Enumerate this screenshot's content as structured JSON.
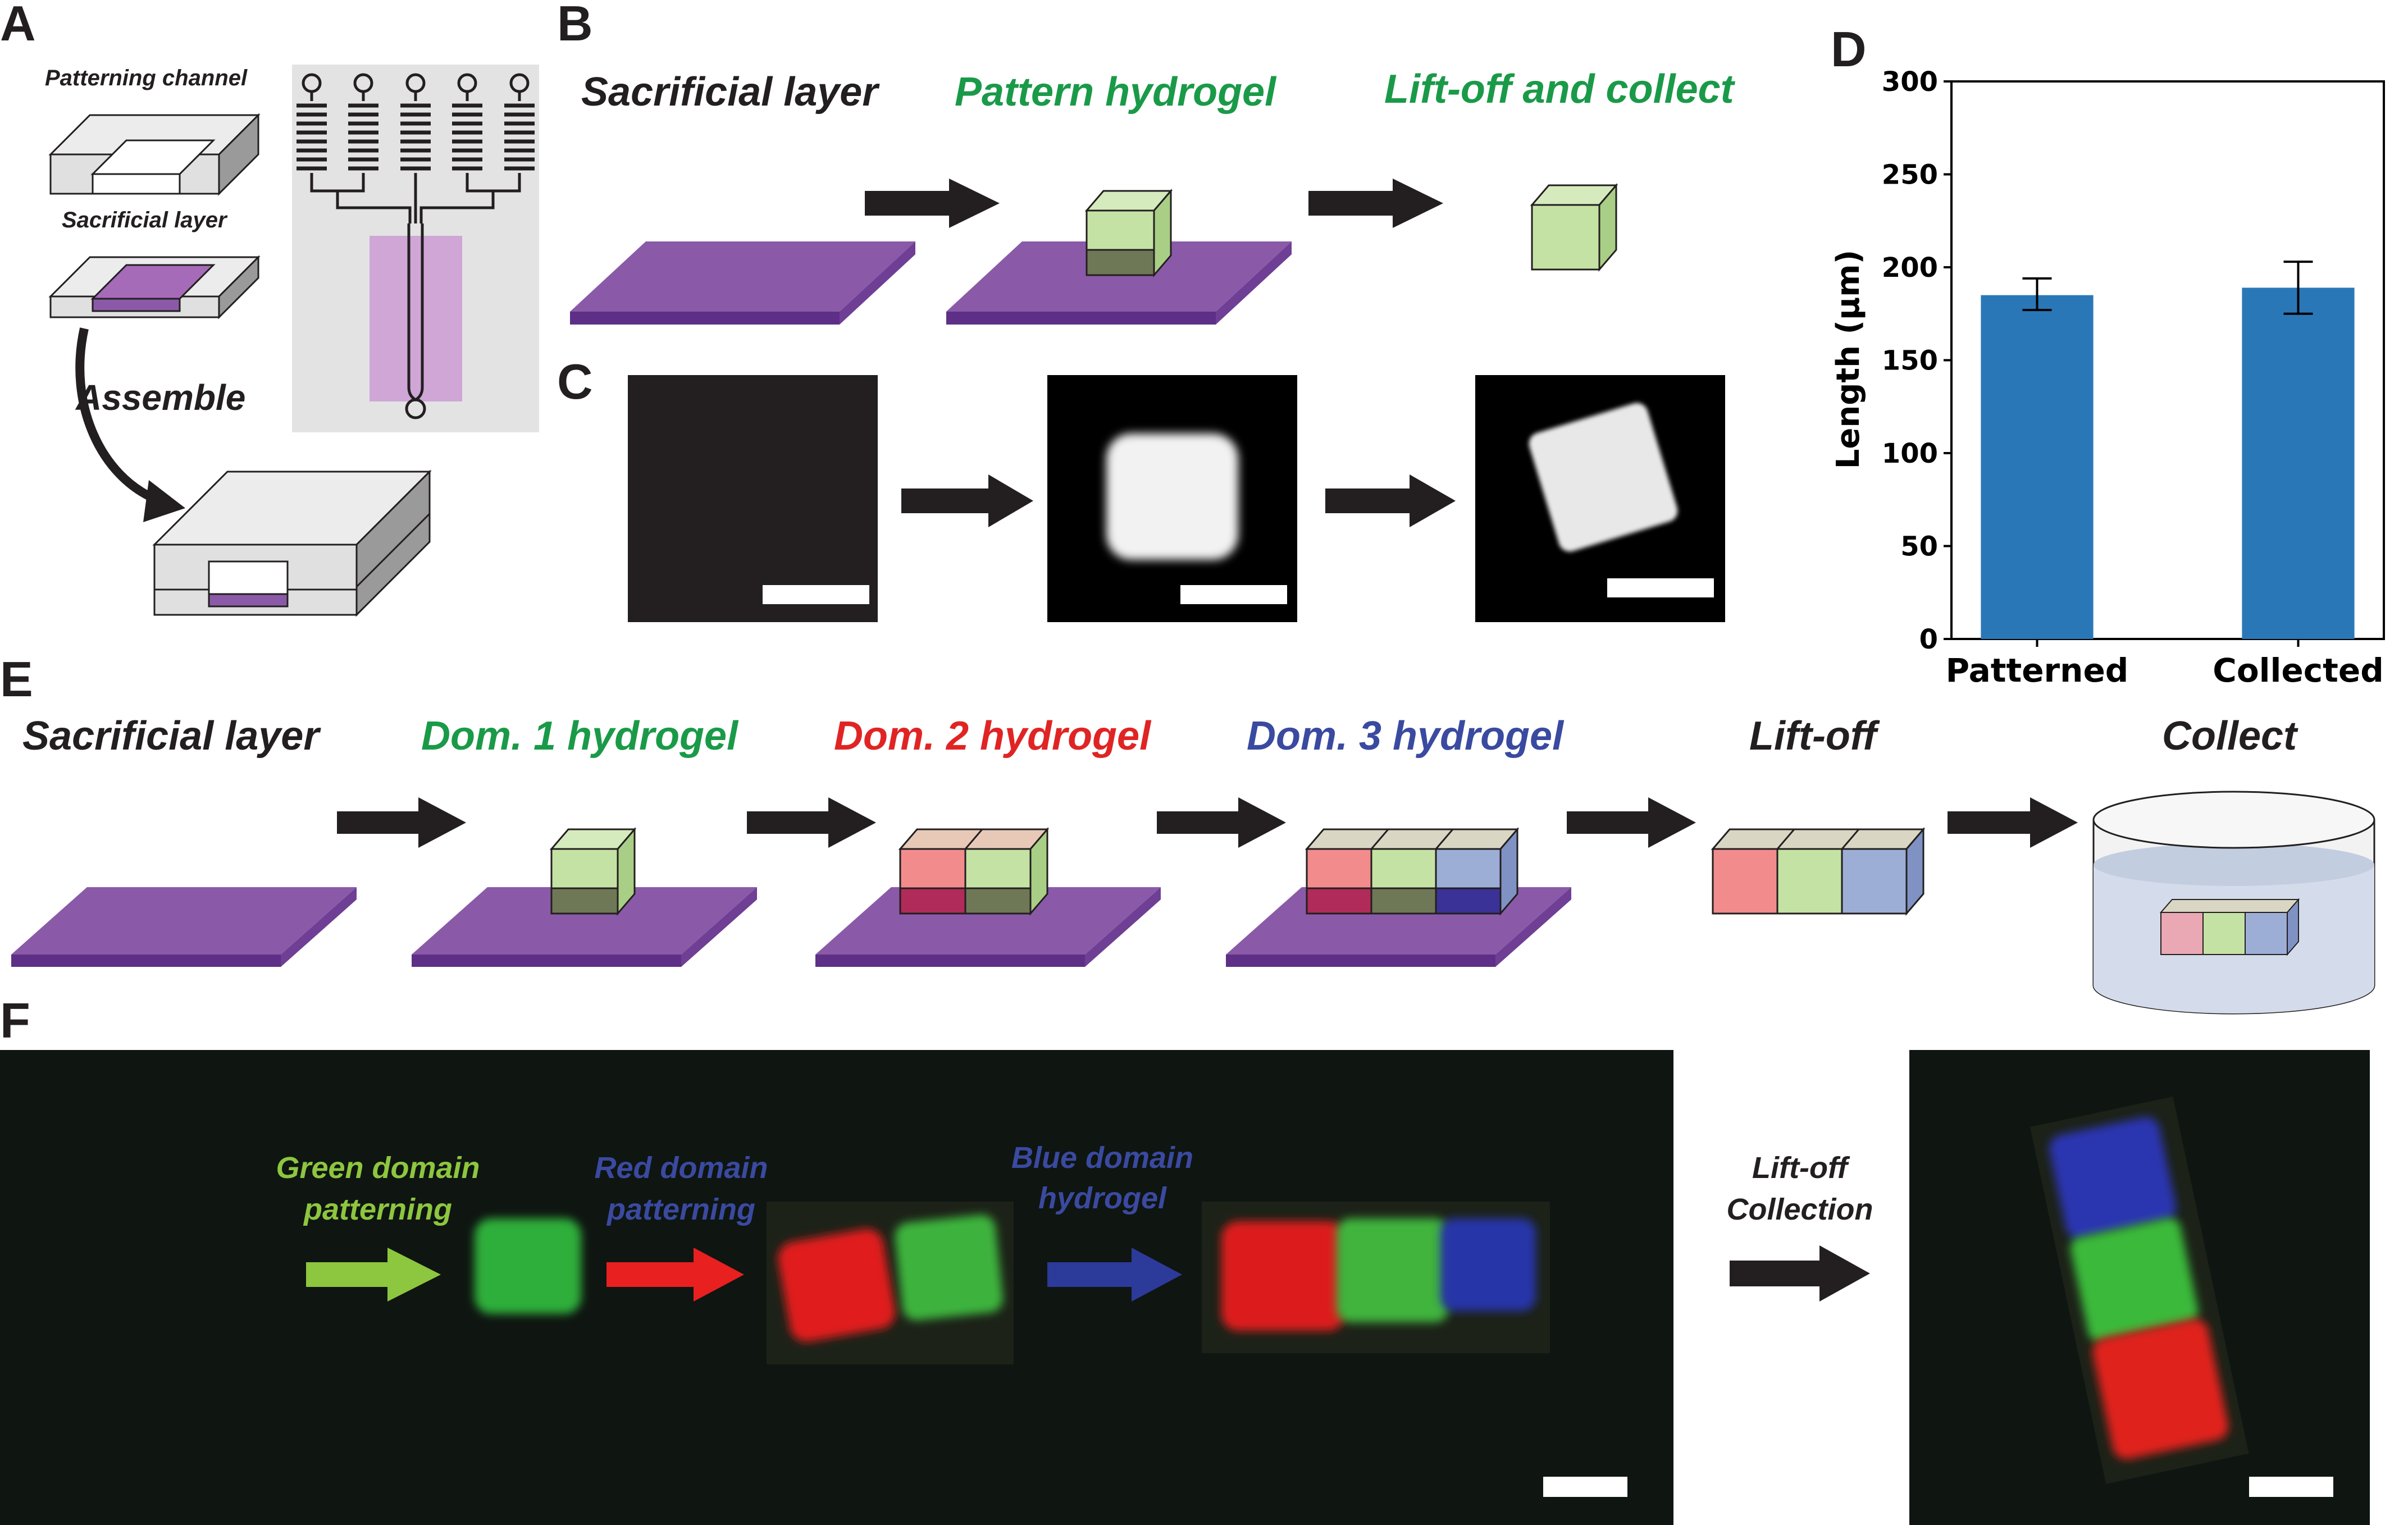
{
  "panels": {
    "A": "A",
    "B": "B",
    "C": "C",
    "D": "D",
    "E": "E",
    "F": "F"
  },
  "panel_a": {
    "patterning_channel": "Patterning channel",
    "sacrificial_layer": "Sacrificial layer",
    "assemble": "Assemble"
  },
  "panel_b": {
    "steps": [
      "Sacrificial layer",
      "Pattern hydrogel",
      "Lift-off and collect"
    ]
  },
  "panel_e": {
    "steps": [
      "Sacrificial layer",
      "Dom. 1 hydrogel",
      "Dom. 2 hydrogel",
      "Dom. 3 hydrogel",
      "Lift-off",
      "Collect"
    ]
  },
  "panel_f": {
    "labels": {
      "green_line1": "Green domain",
      "green_line2": "patterning",
      "red_line1": "Red domain",
      "red_line2": "patterning",
      "blue_line1": "Blue domain",
      "blue_line2": "hydrogel",
      "liftoff_line1": "Lift-off",
      "liftoff_line2": "Collection"
    }
  },
  "colors": {
    "purple": "#8a5aa8",
    "hydrogel_green": "#c5e2a5",
    "hydrogel_red": "#f28c8c",
    "hydrogel_blue": "#9daed6",
    "text_green": "#1a9a48",
    "text_red": "#e02424",
    "text_blue": "#3a4aa0",
    "bar": "#2a77b8"
  },
  "chart_data": {
    "type": "bar",
    "categories": [
      "Patterned",
      "Collected"
    ],
    "values": [
      185,
      189
    ],
    "errors": [
      [
        177,
        194
      ],
      [
        175,
        203
      ]
    ],
    "ylabel": "Length (μm)",
    "ylim": [
      0,
      300
    ],
    "yticks": [
      0,
      50,
      100,
      150,
      200,
      250,
      300
    ],
    "grid": false
  }
}
